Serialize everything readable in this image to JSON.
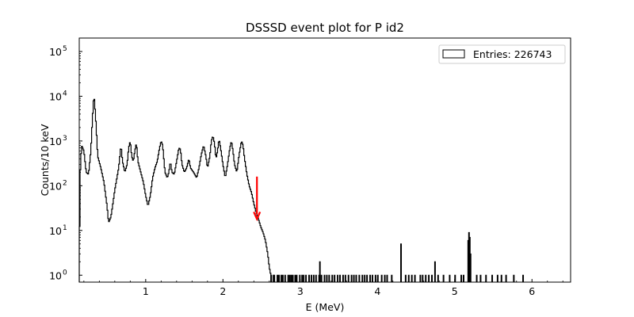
{
  "chart_data": {
    "type": "histogram",
    "title": "DSSSD event plot for P id2",
    "xlabel": "E (MeV)",
    "ylabel": "Counts/10 keV",
    "xlim": [
      0.14,
      6.5
    ],
    "ylim": [
      0.7,
      200000
    ],
    "yscale": "log",
    "bin_width": 0.01,
    "x_ticks": [
      1,
      2,
      3,
      4,
      5,
      6
    ],
    "x_tick_labels": [
      "1",
      "2",
      "3",
      "4",
      "5",
      "6"
    ],
    "y_ticks": [
      1,
      10,
      100,
      1000,
      10000,
      100000
    ],
    "y_tick_labels": [
      "10^0",
      "10^1",
      "10^2",
      "10^3",
      "10^4",
      "10^5"
    ],
    "legend": {
      "label": "Entries: 226743",
      "position": "upper right"
    },
    "series_color": "#000000",
    "annotation": {
      "type": "arrow",
      "color": "#ff0000",
      "x": 2.44,
      "y_from": 160,
      "y_to": 18
    },
    "envelope": [
      [
        0.14,
        1
      ],
      [
        0.15,
        150
      ],
      [
        0.17,
        800
      ],
      [
        0.2,
        600
      ],
      [
        0.23,
        200
      ],
      [
        0.26,
        180
      ],
      [
        0.29,
        600
      ],
      [
        0.31,
        3000
      ],
      [
        0.33,
        11000
      ],
      [
        0.35,
        4000
      ],
      [
        0.38,
        450
      ],
      [
        0.42,
        250
      ],
      [
        0.46,
        120
      ],
      [
        0.5,
        35
      ],
      [
        0.52,
        15
      ],
      [
        0.55,
        20
      ],
      [
        0.58,
        45
      ],
      [
        0.6,
        80
      ],
      [
        0.65,
        250
      ],
      [
        0.68,
        800
      ],
      [
        0.7,
        350
      ],
      [
        0.73,
        200
      ],
      [
        0.76,
        300
      ],
      [
        0.78,
        700
      ],
      [
        0.8,
        1000
      ],
      [
        0.82,
        450
      ],
      [
        0.84,
        350
      ],
      [
        0.86,
        600
      ],
      [
        0.88,
        900
      ],
      [
        0.9,
        350
      ],
      [
        0.93,
        220
      ],
      [
        0.97,
        120
      ],
      [
        1.0,
        60
      ],
      [
        1.03,
        35
      ],
      [
        1.06,
        60
      ],
      [
        1.09,
        150
      ],
      [
        1.12,
        250
      ],
      [
        1.15,
        350
      ],
      [
        1.18,
        700
      ],
      [
        1.2,
        1000
      ],
      [
        1.22,
        800
      ],
      [
        1.25,
        200
      ],
      [
        1.28,
        150
      ],
      [
        1.3,
        200
      ],
      [
        1.32,
        350
      ],
      [
        1.34,
        200
      ],
      [
        1.37,
        180
      ],
      [
        1.4,
        350
      ],
      [
        1.43,
        700
      ],
      [
        1.45,
        650
      ],
      [
        1.47,
        300
      ],
      [
        1.5,
        200
      ],
      [
        1.53,
        250
      ],
      [
        1.56,
        400
      ],
      [
        1.58,
        250
      ],
      [
        1.62,
        200
      ],
      [
        1.66,
        150
      ],
      [
        1.69,
        250
      ],
      [
        1.72,
        500
      ],
      [
        1.75,
        800
      ],
      [
        1.78,
        450
      ],
      [
        1.8,
        250
      ],
      [
        1.83,
        450
      ],
      [
        1.85,
        1000
      ],
      [
        1.87,
        1300
      ],
      [
        1.89,
        900
      ],
      [
        1.91,
        400
      ],
      [
        1.93,
        600
      ],
      [
        1.95,
        1100
      ],
      [
        1.97,
        700
      ],
      [
        2.0,
        300
      ],
      [
        2.03,
        150
      ],
      [
        2.06,
        300
      ],
      [
        2.09,
        700
      ],
      [
        2.11,
        1000
      ],
      [
        2.13,
        600
      ],
      [
        2.15,
        300
      ],
      [
        2.18,
        200
      ],
      [
        2.21,
        500
      ],
      [
        2.24,
        1000
      ],
      [
        2.26,
        800
      ],
      [
        2.28,
        400
      ],
      [
        2.31,
        180
      ],
      [
        2.34,
        100
      ],
      [
        2.37,
        70
      ],
      [
        2.4,
        40
      ],
      [
        2.43,
        25
      ],
      [
        2.46,
        18
      ],
      [
        2.49,
        12
      ],
      [
        2.52,
        9
      ],
      [
        2.55,
        6
      ],
      [
        2.58,
        3
      ],
      [
        2.6,
        1.5
      ],
      [
        2.62,
        1
      ]
    ],
    "tail_spikes": [
      2.62,
      2.65,
      2.66,
      2.7,
      2.72,
      2.75,
      2.77,
      2.8,
      2.84,
      2.86,
      2.88,
      2.9,
      2.93,
      2.95,
      2.99,
      3.02,
      3.04,
      3.07,
      3.11,
      3.14,
      3.17,
      3.2,
      3.24,
      3.27,
      3.31,
      3.34,
      3.37,
      3.41,
      3.44,
      3.48,
      3.51,
      3.55,
      3.58,
      3.62,
      3.66,
      3.69,
      3.72,
      3.76,
      3.8,
      3.83,
      3.86,
      3.9,
      3.93,
      3.97,
      4.0,
      4.05,
      4.09,
      4.12,
      4.18,
      4.36,
      4.4,
      4.44,
      4.48,
      4.55,
      4.58,
      4.62,
      4.66,
      4.7,
      4.78,
      4.85,
      4.93,
      5.0,
      5.08,
      5.11,
      5.28,
      5.33,
      5.4,
      5.48,
      5.55,
      5.6,
      5.66,
      5.76,
      5.88
    ],
    "tail_peaks": [
      {
        "x": 3.25,
        "y": 2
      },
      {
        "x": 4.3,
        "y": 5
      },
      {
        "x": 4.74,
        "y": 2
      },
      {
        "x": 5.17,
        "y": 6
      },
      {
        "x": 5.18,
        "y": 9
      },
      {
        "x": 5.19,
        "y": 7
      },
      {
        "x": 5.2,
        "y": 3
      }
    ]
  }
}
